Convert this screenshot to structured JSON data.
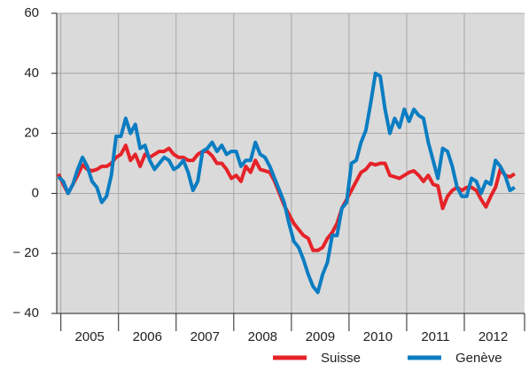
{
  "chart_data": {
    "type": "line",
    "categories": [
      null,
      "2005",
      null,
      null,
      null,
      null,
      null,
      null,
      null,
      null,
      null,
      null,
      null,
      "2006",
      null,
      null,
      null,
      null,
      null,
      null,
      null,
      null,
      null,
      null,
      null,
      "2007",
      null,
      null,
      null,
      null,
      null,
      null,
      null,
      null,
      null,
      null,
      null,
      "2008",
      null,
      null,
      null,
      null,
      null,
      null,
      null,
      null,
      null,
      null,
      null,
      "2009",
      null,
      null,
      null,
      null,
      null,
      null,
      null,
      null,
      null,
      null,
      null,
      "2010",
      null,
      null,
      null,
      null,
      null,
      null,
      null,
      null,
      null,
      null,
      null,
      "2011",
      null,
      null,
      null,
      null,
      null,
      null,
      null,
      null,
      null,
      null,
      null,
      "2012",
      null,
      null,
      null,
      null,
      null,
      null,
      null,
      null,
      null,
      null
    ],
    "series": [
      {
        "name": "Suisse",
        "color": "#e52329",
        "values": [
          6.5,
          3,
          0,
          3,
          6,
          9.5,
          8,
          7.5,
          8,
          9,
          9,
          10,
          12,
          13,
          16,
          11,
          13,
          9,
          13,
          12,
          13,
          14,
          14,
          15,
          13,
          12,
          12,
          11,
          11,
          13,
          14,
          14,
          12.5,
          10,
          10,
          8,
          5,
          6,
          4,
          9,
          7,
          11,
          8,
          7.5,
          7,
          4,
          0,
          -4,
          -7,
          -10,
          -12,
          -14,
          -15,
          -19,
          -19,
          -18,
          -15,
          -13,
          -10,
          -5,
          -2,
          1,
          4,
          7,
          8,
          10,
          9.5,
          10,
          10,
          6,
          5.5,
          5,
          6,
          7,
          7.5,
          6,
          4,
          6,
          3,
          2.5,
          -5,
          -1,
          1,
          2,
          1,
          2,
          2,
          1,
          -2,
          -4.5,
          -1,
          2,
          8,
          6,
          5.5,
          6.5
        ]
      },
      {
        "name": "Genève",
        "color": "#0b7dc2",
        "values": [
          5.5,
          4,
          0,
          3,
          8,
          12,
          9,
          4,
          2,
          -3,
          -1,
          6,
          19,
          19,
          25,
          20,
          23,
          15,
          16,
          11,
          8,
          10,
          12,
          11,
          8,
          9,
          11,
          7,
          1,
          4,
          14,
          15,
          17,
          14,
          16,
          13,
          14,
          14,
          9,
          11,
          11,
          17,
          13,
          12,
          9,
          5,
          1,
          -3,
          -10,
          -16,
          -18,
          -22,
          -27,
          -31,
          -33,
          -27,
          -23,
          -14,
          -14,
          -5,
          -3,
          10,
          11,
          17,
          21,
          30,
          40,
          39,
          28,
          20,
          25,
          22,
          28,
          24,
          28,
          26,
          25,
          17,
          11,
          5,
          15,
          14,
          9,
          2,
          -1,
          -1,
          5,
          4,
          0,
          4,
          3,
          11,
          9,
          6,
          1,
          2
        ]
      }
    ],
    "ylim": [
      -40,
      60
    ],
    "yticks": [
      {
        "value": -40,
        "label": "− 40"
      },
      {
        "value": -20,
        "label": "− 20"
      },
      0,
      20,
      40,
      60
    ],
    "grid": true,
    "legend": "bottom-right"
  }
}
